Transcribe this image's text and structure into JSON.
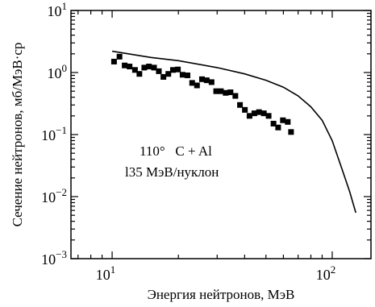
{
  "chart_data": {
    "type": "scatter",
    "xlabel": "Энергия нейтронов, МэВ",
    "ylabel": "Сечение нейтронов, мб/МэВ·ср",
    "xscale": "log",
    "yscale": "log",
    "xlim": [
      6.5,
      150
    ],
    "ylim": [
      0.001,
      10
    ],
    "x_ticks": [
      {
        "value": 10,
        "base": "10",
        "exp": "1"
      },
      {
        "value": 100,
        "base": "10",
        "exp": "2"
      }
    ],
    "y_ticks": [
      {
        "value": 10,
        "base": "10",
        "exp": "1"
      },
      {
        "value": 1,
        "base": "10",
        "exp": "0"
      },
      {
        "value": 0.1,
        "base": "10",
        "exp": "−1"
      },
      {
        "value": 0.01,
        "base": "10",
        "exp": "−2"
      },
      {
        "value": 0.001,
        "base": "10",
        "exp": "−3"
      }
    ],
    "annotations": [
      "110°   C + Al",
      "l35 МэВ/нуклон"
    ],
    "series": [
      {
        "type": "scatter",
        "marker": "square",
        "x": [
          10.2,
          10.8,
          11.4,
          12.0,
          12.7,
          13.3,
          14.0,
          14.7,
          15.5,
          16.3,
          17.1,
          18.0,
          18.9,
          19.9,
          20.9,
          22.0,
          23.1,
          24.3,
          25.6,
          26.9,
          28.3,
          29.7,
          31.2,
          32.8,
          34.5,
          36.3,
          38.1,
          40.1,
          42.1,
          44.3,
          46.5,
          48.9,
          51.4,
          54.1,
          56.8,
          59.7,
          62.8,
          65.0
        ],
        "y": [
          1.5,
          1.8,
          1.3,
          1.25,
          1.1,
          0.95,
          1.2,
          1.25,
          1.2,
          1.05,
          0.85,
          0.95,
          1.1,
          1.12,
          0.92,
          0.9,
          0.68,
          0.62,
          0.78,
          0.75,
          0.7,
          0.5,
          0.5,
          0.47,
          0.48,
          0.42,
          0.3,
          0.25,
          0.2,
          0.22,
          0.23,
          0.22,
          0.2,
          0.15,
          0.13,
          0.17,
          0.16,
          0.11
        ]
      },
      {
        "type": "line",
        "x": [
          10,
          15,
          20,
          30,
          40,
          50,
          60,
          70,
          80,
          90,
          100,
          110,
          120,
          128
        ],
        "y": [
          2.2,
          1.75,
          1.55,
          1.2,
          0.95,
          0.75,
          0.58,
          0.42,
          0.28,
          0.17,
          0.08,
          0.03,
          0.012,
          0.0055
        ]
      }
    ]
  }
}
